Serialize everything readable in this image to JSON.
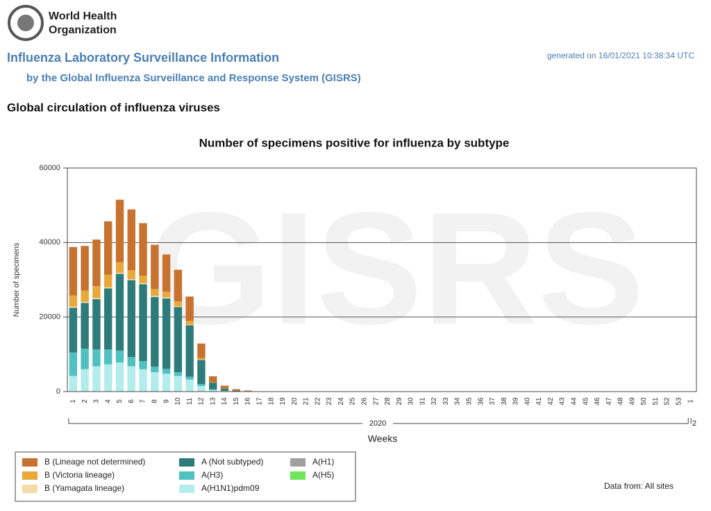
{
  "header": {
    "org": [
      "World Health",
      "Organization"
    ],
    "title": "Influenza Laboratory Surveillance Information",
    "subtitle": "by the Global Influenza Surveillance and Response System (GISRS)",
    "generated": "generated on 16/01/2021 10:38:34 UTC",
    "section": "Global circulation of influenza viruses"
  },
  "chart_data": {
    "type": "bar",
    "stacked": true,
    "title": "Number of specimens positive for influenza by subtype",
    "watermark": "GISRS",
    "y_label": "Number of specimens",
    "x_label": "Weeks",
    "x_groups": [
      "2020",
      "2"
    ],
    "note": "Data from: All sites",
    "ylim": [
      0,
      60000
    ],
    "yticks": [
      0,
      20000,
      40000,
      60000
    ],
    "grid": true,
    "categories": [
      "1",
      "2",
      "3",
      "4",
      "5",
      "6",
      "7",
      "8",
      "9",
      "10",
      "11",
      "12",
      "13",
      "14",
      "15",
      "16",
      "17",
      "18",
      "19",
      "20",
      "21",
      "22",
      "23",
      "24",
      "25",
      "26",
      "27",
      "28",
      "29",
      "30",
      "31",
      "32",
      "33",
      "34",
      "35",
      "36",
      "37",
      "38",
      "39",
      "40",
      "41",
      "42",
      "43",
      "44",
      "45",
      "46",
      "47",
      "48",
      "49",
      "50",
      "51",
      "52",
      "53",
      "1"
    ],
    "series": [
      {
        "name": "A(H1N1)pdm09",
        "color": "#b3ecec",
        "values": [
          4200,
          6000,
          6800,
          7300,
          7800,
          6800,
          6000,
          5200,
          4800,
          4200,
          3200,
          1500,
          400,
          150,
          80,
          30,
          0,
          0,
          0,
          0,
          0,
          0,
          0,
          0,
          0,
          0,
          0,
          0,
          0,
          0,
          0,
          0,
          0,
          0,
          0,
          0,
          0,
          0,
          0,
          0,
          0,
          0,
          0,
          0,
          0,
          0,
          0,
          0,
          0,
          0,
          0,
          0,
          0,
          0
        ]
      },
      {
        "name": "A(H3)",
        "color": "#4fc1c0",
        "values": [
          6300,
          5500,
          4500,
          4000,
          3200,
          2500,
          2200,
          1500,
          1300,
          1000,
          800,
          500,
          200,
          50,
          20,
          10,
          0,
          0,
          0,
          0,
          0,
          0,
          0,
          0,
          0,
          0,
          0,
          0,
          0,
          0,
          0,
          0,
          0,
          0,
          0,
          0,
          0,
          0,
          0,
          0,
          0,
          0,
          0,
          0,
          0,
          0,
          0,
          0,
          0,
          0,
          0,
          0,
          0,
          0
        ]
      },
      {
        "name": "A (Not subtyped)",
        "color": "#2e7b7b",
        "values": [
          12000,
          12300,
          13500,
          16400,
          20600,
          20600,
          20600,
          18700,
          18900,
          17500,
          13800,
          6500,
          1800,
          600,
          200,
          100,
          30,
          30,
          30,
          30,
          30,
          30,
          30,
          30,
          30,
          30,
          30,
          30,
          30,
          30,
          30,
          30,
          30,
          30,
          30,
          30,
          30,
          30,
          30,
          30,
          30,
          30,
          30,
          30,
          30,
          30,
          30,
          30,
          30,
          30,
          30,
          30,
          30,
          30
        ]
      },
      {
        "name": "A(H1)",
        "color": "#a0a0a0",
        "values": [
          0,
          0,
          0,
          0,
          0,
          0,
          0,
          0,
          0,
          0,
          0,
          0,
          0,
          0,
          0,
          0,
          0,
          0,
          0,
          0,
          0,
          0,
          0,
          0,
          0,
          0,
          0,
          0,
          0,
          0,
          0,
          0,
          0,
          0,
          0,
          0,
          0,
          0,
          0,
          0,
          0,
          0,
          0,
          0,
          0,
          0,
          0,
          0,
          0,
          0,
          0,
          0,
          0,
          0
        ]
      },
      {
        "name": "A(H5)",
        "color": "#6ee65a",
        "values": [
          0,
          0,
          0,
          0,
          0,
          0,
          0,
          0,
          0,
          0,
          0,
          0,
          0,
          0,
          0,
          0,
          0,
          0,
          0,
          0,
          0,
          0,
          0,
          0,
          0,
          0,
          0,
          0,
          0,
          0,
          0,
          0,
          0,
          0,
          0,
          0,
          0,
          0,
          0,
          0,
          0,
          0,
          0,
          0,
          0,
          0,
          0,
          0,
          0,
          0,
          0,
          0,
          0,
          0
        ]
      },
      {
        "name": "B (Yamagata lineage)",
        "color": "#f5dca6",
        "values": [
          300,
          300,
          300,
          300,
          300,
          300,
          300,
          300,
          300,
          200,
          200,
          100,
          0,
          0,
          0,
          0,
          0,
          0,
          0,
          0,
          0,
          0,
          0,
          0,
          0,
          0,
          0,
          0,
          0,
          0,
          0,
          0,
          0,
          0,
          0,
          0,
          0,
          0,
          0,
          0,
          0,
          0,
          0,
          0,
          0,
          0,
          0,
          0,
          0,
          0,
          0,
          0,
          0,
          0
        ]
      },
      {
        "name": "B (Victoria lineage)",
        "color": "#e8a83a",
        "values": [
          3000,
          3000,
          3200,
          3400,
          2800,
          2400,
          2000,
          1800,
          1500,
          1300,
          1000,
          400,
          100,
          50,
          20,
          10,
          0,
          0,
          0,
          0,
          0,
          0,
          0,
          0,
          0,
          0,
          0,
          0,
          0,
          0,
          0,
          0,
          0,
          0,
          0,
          0,
          0,
          0,
          0,
          0,
          0,
          0,
          0,
          0,
          0,
          0,
          0,
          0,
          0,
          0,
          0,
          0,
          0,
          0
        ]
      },
      {
        "name": "B (Lineage not determined)",
        "color": "#c8722f",
        "values": [
          13000,
          12000,
          12500,
          14300,
          16800,
          16300,
          14100,
          11900,
          10000,
          8500,
          6500,
          3900,
          1600,
          750,
          330,
          150,
          30,
          30,
          30,
          30,
          30,
          30,
          30,
          30,
          30,
          30,
          30,
          30,
          30,
          30,
          30,
          30,
          30,
          30,
          30,
          30,
          30,
          30,
          30,
          30,
          30,
          30,
          30,
          30,
          30,
          30,
          30,
          30,
          30,
          30,
          30,
          30,
          30,
          30
        ]
      }
    ]
  }
}
